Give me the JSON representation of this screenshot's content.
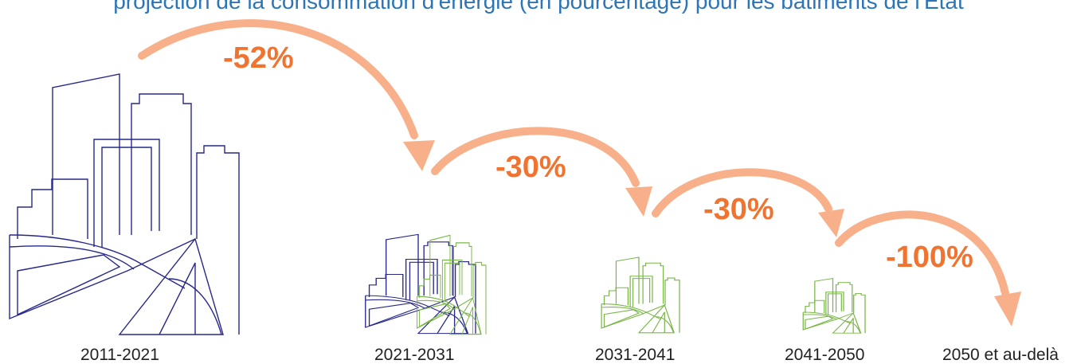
{
  "title": "projection de la consommation d'énergie (en pourcentage) pour les bâtiments de l'État",
  "colors": {
    "arrow": "#f7b08a",
    "percent_text": "#f07430",
    "existing_building": "#27288a",
    "new_building": "#7ab648",
    "title": "#2e75b6"
  },
  "steps": [
    {
      "period": "2011-2021"
    },
    {
      "period": "2021-2031",
      "reduction_from_previous": "-52%"
    },
    {
      "period": "2031-2041",
      "reduction_from_previous": "-30%"
    },
    {
      "period": "2041-2050",
      "reduction_from_previous": "-30%"
    },
    {
      "period": "2050 et au-delà",
      "reduction_from_previous": "-100%"
    }
  ]
}
